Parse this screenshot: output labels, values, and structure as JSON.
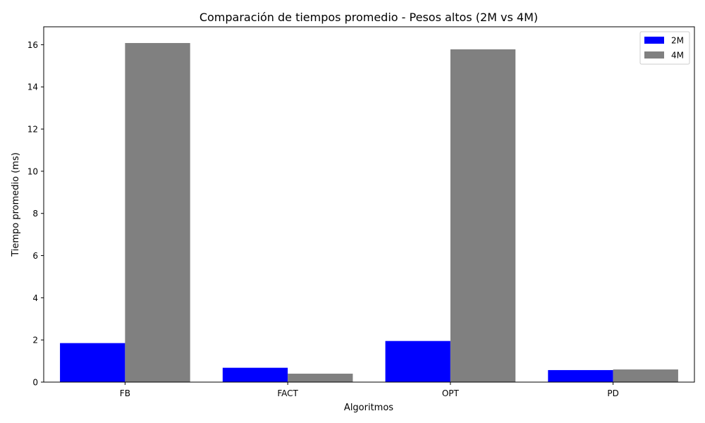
{
  "chart_data": {
    "type": "bar",
    "title": "Comparación de tiempos promedio - Pesos altos (2M vs 4M)",
    "xlabel": "Algoritmos",
    "ylabel": "Tiempo promedio (ms)",
    "categories": [
      "FB",
      "FACT",
      "OPT",
      "PD"
    ],
    "series": [
      {
        "name": "2M",
        "color": "#0000ff",
        "values": [
          1.85,
          0.68,
          1.95,
          0.57
        ]
      },
      {
        "name": "4M",
        "color": "#808080",
        "values": [
          16.08,
          0.4,
          15.78,
          0.6
        ]
      }
    ],
    "ylim": [
      0,
      16.85
    ],
    "yticks": [
      "0",
      "2",
      "4",
      "6",
      "8",
      "10",
      "12",
      "14",
      "16"
    ],
    "grid": false,
    "legend_position": "top-right"
  }
}
